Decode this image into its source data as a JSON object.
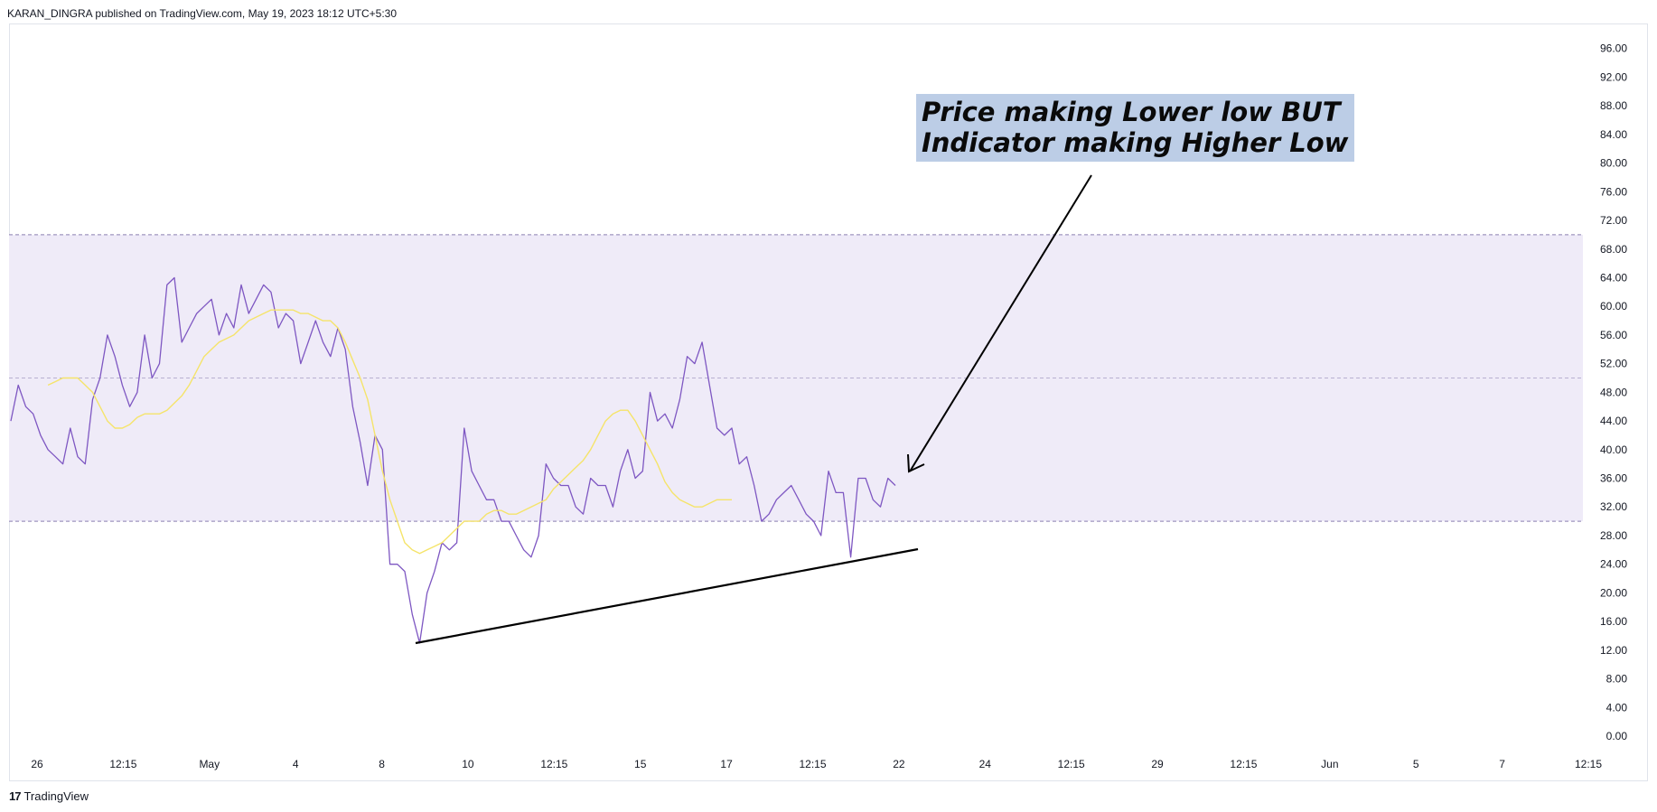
{
  "header": {
    "text": "KARAN_DINGRA published on TradingView.com, May 19, 2023 18:12 UTC+5:30"
  },
  "footer": {
    "logo_glyph": "17",
    "brand": "TradingView"
  },
  "annotation": {
    "line1": "Price making Lower low BUT",
    "line2": "Indicator making Higher Low"
  },
  "colors": {
    "indicator": "#7e57c2",
    "signal": "#f5e46a",
    "band_fill": "#efebf8",
    "band_lines": "#8b7fb0",
    "trendline": "#000000",
    "annotation_bg": "#bccde6"
  },
  "chart_data": {
    "type": "line",
    "title": "",
    "xlabel": "",
    "ylabel": "",
    "ylim": [
      -2,
      98
    ],
    "yticks": [
      "96.00",
      "92.00",
      "88.00",
      "84.00",
      "80.00",
      "76.00",
      "72.00",
      "68.00",
      "64.00",
      "60.00",
      "56.00",
      "52.00",
      "48.00",
      "44.00",
      "40.00",
      "36.00",
      "32.00",
      "28.00",
      "24.00",
      "20.00",
      "16.00",
      "12.00",
      "8.00",
      "4.00",
      "0.00"
    ],
    "xticks": [
      "26",
      "12:15",
      "May",
      "4",
      "8",
      "10",
      "12:15",
      "15",
      "17",
      "12:15",
      "22",
      "24",
      "12:15",
      "29",
      "12:15",
      "Jun",
      "5",
      "7",
      "12:15"
    ],
    "bands": {
      "upper": 70,
      "middle": 50,
      "lower": 30
    },
    "series": [
      {
        "values": [
          44,
          49,
          46,
          45,
          42,
          40,
          39,
          38,
          43,
          39,
          38,
          47,
          50,
          56,
          53,
          49,
          46,
          48,
          56,
          50,
          52,
          63,
          64,
          55,
          57,
          59,
          60,
          61,
          56,
          59,
          57,
          63,
          59,
          61,
          63,
          62,
          57,
          59,
          58,
          52,
          55,
          58,
          55,
          53,
          57,
          54,
          46,
          41,
          35,
          42,
          40,
          24,
          24,
          23,
          17,
          13,
          20,
          23,
          27,
          26,
          27,
          43,
          37,
          35,
          33,
          33,
          30,
          30,
          28,
          26,
          25,
          28,
          38,
          36,
          35,
          35,
          32,
          31,
          36,
          35,
          35,
          32,
          37,
          40,
          36,
          37,
          48,
          44,
          45,
          43,
          47,
          53,
          52,
          55,
          49,
          43,
          42,
          43,
          38,
          39,
          35,
          30,
          31,
          33,
          34,
          35,
          33,
          31,
          30,
          28,
          37,
          34,
          34,
          25,
          36,
          36,
          33,
          32,
          36,
          35
        ],
        "color": "#7e57c2"
      },
      {
        "values": [
          49,
          49.5,
          50,
          50,
          50,
          49,
          48,
          46,
          44,
          43,
          43,
          43.5,
          44.5,
          45,
          45,
          45,
          45.5,
          46.5,
          47.5,
          49,
          51,
          53,
          54,
          55,
          55.5,
          56,
          57,
          58,
          58.5,
          59,
          59.5,
          59.5,
          59.5,
          59.5,
          59,
          59,
          58.5,
          58,
          58,
          57,
          55,
          52.5,
          50,
          47,
          42,
          37,
          33,
          30,
          27,
          26,
          25.5,
          26,
          26.5,
          27,
          28,
          29,
          30,
          30,
          30,
          31,
          31.5,
          31.5,
          31,
          31,
          31.5,
          32,
          32.5,
          33,
          34.5,
          35.5,
          36.5,
          37.5,
          38.5,
          40,
          42,
          44,
          45,
          45.5,
          45.5,
          44,
          42,
          40,
          38,
          35.5,
          34,
          33,
          32.5,
          32,
          32,
          32.5,
          33,
          33,
          33
        ],
        "offset": 5,
        "color": "#f5e46a"
      }
    ]
  }
}
